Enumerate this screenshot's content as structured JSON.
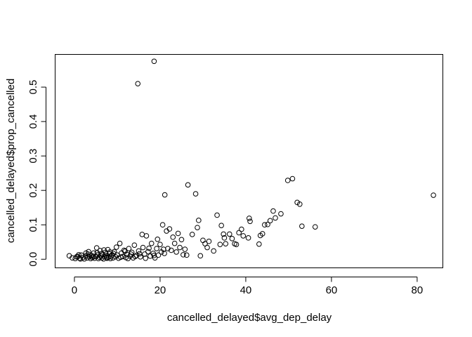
{
  "chart_data": {
    "type": "scatter",
    "title": "",
    "xlabel": "cancelled_delayed$avg_dep_delay",
    "ylabel": "cancelled_delayed$prop_cancelled",
    "xlim": [
      -4.5,
      86
    ],
    "ylim": [
      -0.025,
      0.595
    ],
    "x_ticks": [
      0,
      20,
      40,
      60,
      80
    ],
    "y_ticks": [
      0.0,
      0.1,
      0.2,
      0.3,
      0.4,
      0.5
    ],
    "x_tick_labels": [
      "0",
      "20",
      "40",
      "60",
      "80"
    ],
    "y_tick_labels": [
      "0.0",
      "0.1",
      "0.2",
      "0.3",
      "0.4",
      "0.5"
    ],
    "grid": false,
    "legend": "none",
    "marker": "open-circle",
    "points": [
      [
        -1.2,
        0.01
      ],
      [
        -0.5,
        0.004
      ],
      [
        0.2,
        0.002
      ],
      [
        0.8,
        0.008
      ],
      [
        1.2,
        0.003
      ],
      [
        1.6,
        0.012
      ],
      [
        2.0,
        0.005
      ],
      [
        2.3,
        0.001
      ],
      [
        2.6,
        0.009
      ],
      [
        3.0,
        0.004
      ],
      [
        3.2,
        0.015
      ],
      [
        3.5,
        0.007
      ],
      [
        3.8,
        0.002
      ],
      [
        4.0,
        0.011
      ],
      [
        4.2,
        0.005
      ],
      [
        4.5,
        0.018
      ],
      [
        4.7,
        0.003
      ],
      [
        5.0,
        0.008
      ],
      [
        5.2,
        0.033
      ],
      [
        5.4,
        0.012
      ],
      [
        5.6,
        0.002
      ],
      [
        5.8,
        0.006
      ],
      [
        6.0,
        0.025
      ],
      [
        6.2,
        0.009
      ],
      [
        6.4,
        0.004
      ],
      [
        6.6,
        0.014
      ],
      [
        6.8,
        0.001
      ],
      [
        7.0,
        0.007
      ],
      [
        7.2,
        0.02
      ],
      [
        7.4,
        0.011
      ],
      [
        7.6,
        0.003
      ],
      [
        7.8,
        0.028
      ],
      [
        8.0,
        0.006
      ],
      [
        8.2,
        0.016
      ],
      [
        8.4,
        0.002
      ],
      [
        8.6,
        0.009
      ],
      [
        8.8,
        0.013
      ],
      [
        9.0,
        0.004
      ],
      [
        9.3,
        0.022
      ],
      [
        9.6,
        0.007
      ],
      [
        10.0,
        0.012
      ],
      [
        10.3,
        0.003
      ],
      [
        10.6,
        0.046
      ],
      [
        11.0,
        0.018
      ],
      [
        11.3,
        0.008
      ],
      [
        11.6,
        0.026
      ],
      [
        12.0,
        0.005
      ],
      [
        12.3,
        0.014
      ],
      [
        12.7,
        0.031
      ],
      [
        13.0,
        0.009
      ],
      [
        13.4,
        0.02
      ],
      [
        13.7,
        0.004
      ],
      [
        14.0,
        0.041
      ],
      [
        14.5,
        0.011
      ],
      [
        15.0,
        0.024
      ],
      [
        15.4,
        0.007
      ],
      [
        15.8,
        0.072
      ],
      [
        16.0,
        0.034
      ],
      [
        16.4,
        0.015
      ],
      [
        16.8,
        0.068
      ],
      [
        17.2,
        0.022
      ],
      [
        17.7,
        0.009
      ],
      [
        18.0,
        0.046
      ],
      [
        18.4,
        0.017
      ],
      [
        18.8,
        0.004
      ],
      [
        19.2,
        0.031
      ],
      [
        19.6,
        0.012
      ],
      [
        20.0,
        0.043
      ],
      [
        20.3,
        0.021
      ],
      [
        20.6,
        0.1
      ],
      [
        21.0,
        0.017
      ],
      [
        21.5,
        0.082
      ],
      [
        21.8,
        0.031
      ],
      [
        22.2,
        0.088
      ],
      [
        22.6,
        0.026
      ],
      [
        23.0,
        0.064
      ],
      [
        23.4,
        0.046
      ],
      [
        23.8,
        0.021
      ],
      [
        24.2,
        0.075
      ],
      [
        24.6,
        0.034
      ],
      [
        25.0,
        0.057
      ],
      [
        25.4,
        0.013
      ],
      [
        25.8,
        0.029
      ],
      [
        26.2,
        0.012
      ],
      [
        26.5,
        0.216
      ],
      [
        27.5,
        0.072
      ],
      [
        28.3,
        0.19
      ],
      [
        28.7,
        0.092
      ],
      [
        29.0,
        0.113
      ],
      [
        29.4,
        0.01
      ],
      [
        30.0,
        0.055
      ],
      [
        30.5,
        0.045
      ],
      [
        31.0,
        0.034
      ],
      [
        31.4,
        0.052
      ],
      [
        32.5,
        0.024
      ],
      [
        33.3,
        0.128
      ],
      [
        34.0,
        0.043
      ],
      [
        34.3,
        0.098
      ],
      [
        34.8,
        0.073
      ],
      [
        35.0,
        0.062
      ],
      [
        35.3,
        0.045
      ],
      [
        36.2,
        0.073
      ],
      [
        36.8,
        0.06
      ],
      [
        37.4,
        0.045
      ],
      [
        37.8,
        0.043
      ],
      [
        38.4,
        0.077
      ],
      [
        39.0,
        0.087
      ],
      [
        39.4,
        0.068
      ],
      [
        40.6,
        0.062
      ],
      [
        40.8,
        0.119
      ],
      [
        41.0,
        0.11
      ],
      [
        43.1,
        0.044
      ],
      [
        43.4,
        0.069
      ],
      [
        43.9,
        0.074
      ],
      [
        44.4,
        0.1
      ],
      [
        45.1,
        0.101
      ],
      [
        45.7,
        0.112
      ],
      [
        46.4,
        0.14
      ],
      [
        46.9,
        0.12
      ],
      [
        48.2,
        0.132
      ],
      [
        49.8,
        0.229
      ],
      [
        50.9,
        0.234
      ],
      [
        52.0,
        0.165
      ],
      [
        52.6,
        0.16
      ],
      [
        53.1,
        0.096
      ],
      [
        56.2,
        0.094
      ],
      [
        83.8,
        0.186
      ],
      [
        14.8,
        0.51
      ],
      [
        18.6,
        0.575
      ],
      [
        21.1,
        0.187
      ],
      [
        0.5,
        0.007
      ],
      [
        1.0,
        0.013
      ],
      [
        1.4,
        0.001
      ],
      [
        2.7,
        0.018
      ],
      [
        3.3,
        0.022
      ],
      [
        4.4,
        0.008
      ],
      [
        5.3,
        0.019
      ],
      [
        6.3,
        0.016
      ],
      [
        6.9,
        0.027
      ],
      [
        7.5,
        0.005
      ],
      [
        8.3,
        0.021
      ],
      [
        9.1,
        0.017
      ],
      [
        9.8,
        0.035
      ],
      [
        10.8,
        0.006
      ],
      [
        11.8,
        0.023
      ],
      [
        12.5,
        0.002
      ],
      [
        13.2,
        0.015
      ],
      [
        14.2,
        0.008
      ],
      [
        15.2,
        0.016
      ],
      [
        16.6,
        0.003
      ],
      [
        17.4,
        0.032
      ],
      [
        18.6,
        0.011
      ],
      [
        19.4,
        0.058
      ],
      [
        20.8,
        0.029
      ]
    ]
  }
}
